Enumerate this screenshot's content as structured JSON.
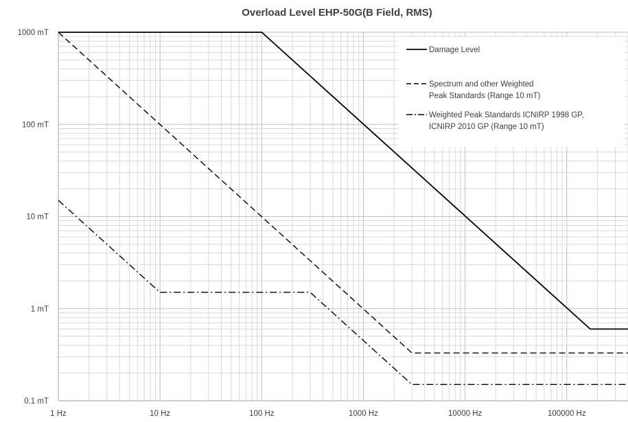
{
  "chart_data": {
    "type": "line",
    "title": "Overload Level EHP-50G(B Field, RMS)",
    "xlabel": "",
    "ylabel": "",
    "x_scale": "log",
    "y_scale": "log",
    "xlim": [
      1,
      400000
    ],
    "ylim": [
      0.1,
      1000
    ],
    "x_ticks": [
      {
        "value": 1,
        "label": "1 Hz"
      },
      {
        "value": 10,
        "label": "10 Hz"
      },
      {
        "value": 100,
        "label": "100 Hz"
      },
      {
        "value": 1000,
        "label": "1000 Hz"
      },
      {
        "value": 10000,
        "label": "10000 Hz"
      },
      {
        "value": 100000,
        "label": "100000 Hz"
      }
    ],
    "y_ticks": [
      {
        "value": 0.1,
        "label": "0.1 mT"
      },
      {
        "value": 1,
        "label": "1 mT"
      },
      {
        "value": 10,
        "label": "10 mT"
      },
      {
        "value": 100,
        "label": "100 mT"
      },
      {
        "value": 1000,
        "label": "1000 mT"
      }
    ],
    "grid": true,
    "legend_position": "top-right",
    "series": [
      {
        "name": "Damage Level",
        "style": "solid",
        "color": "#000000",
        "points": [
          [
            1,
            1000
          ],
          [
            100,
            1000
          ],
          [
            170000,
            0.6
          ],
          [
            400000,
            0.6
          ]
        ]
      },
      {
        "name": "Spectrum and other Weighted\nPeak Standards (Range 10 mT)",
        "style": "dashed",
        "color": "#000000",
        "points": [
          [
            1,
            1000
          ],
          [
            3000,
            0.33
          ],
          [
            400000,
            0.33
          ]
        ]
      },
      {
        "name": "Weighted Peak Standards ICNIRP 1998 GP,\nICNIRP 2010 GP (Range 10 mT)",
        "style": "dashdot",
        "color": "#000000",
        "points": [
          [
            1,
            15
          ],
          [
            10,
            1.5
          ],
          [
            300,
            1.5
          ],
          [
            3000,
            0.15
          ],
          [
            400000,
            0.15
          ]
        ]
      }
    ]
  }
}
